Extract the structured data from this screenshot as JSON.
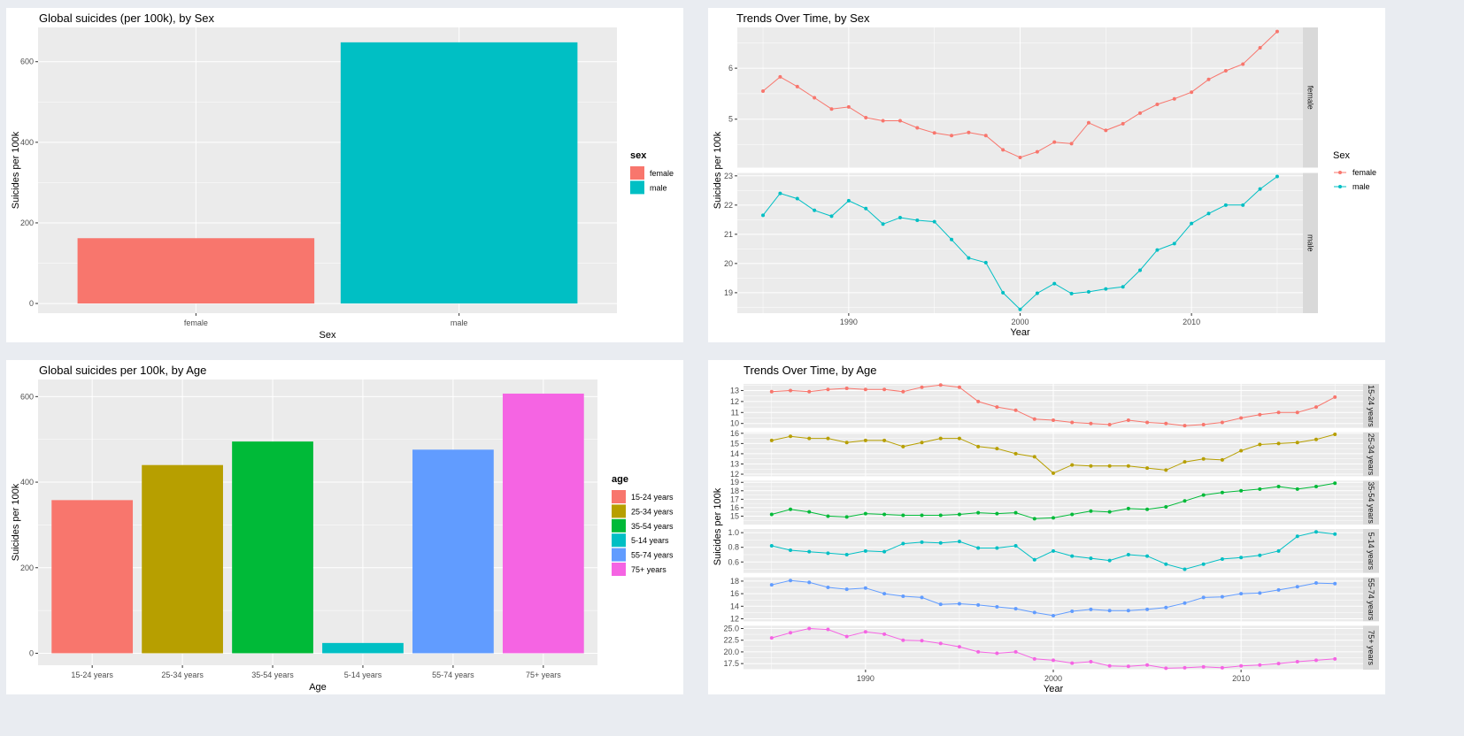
{
  "panels": [
    {
      "title": "Global suicides (per 100k), by Sex"
    },
    {
      "title": "Trends Over Time, by Sex"
    },
    {
      "title": "Global suicides per 100k, by Age"
    },
    {
      "title": "Trends Over Time, by Age"
    }
  ],
  "colors": {
    "female": "#F8766D",
    "male": "#00BFC4",
    "age": [
      "#F8766D",
      "#B79F00",
      "#00BA38",
      "#00BFC4",
      "#619CFF",
      "#F564E3"
    ],
    "panel_bg": "#EBEBEB",
    "strip_bg": "#D9D9D9"
  },
  "chart_data": [
    {
      "type": "bar",
      "title": "Global suicides (per 100k), by Sex",
      "xlabel": "Sex",
      "ylabel": "Suicides per 100k",
      "categories": [
        "female",
        "male"
      ],
      "values": [
        162,
        648
      ],
      "ylim": [
        -24,
        685
      ],
      "yticks": [
        0,
        200,
        400,
        600
      ],
      "legend": {
        "title": "sex",
        "entries": [
          "female",
          "male"
        ],
        "position": "right"
      },
      "grid": true
    },
    {
      "type": "line",
      "title": "Trends Over Time, by Sex",
      "xlabel": "Year",
      "ylabel": "Suicides per 100k",
      "x": [
        1985,
        1986,
        1987,
        1988,
        1989,
        1990,
        1991,
        1992,
        1993,
        1994,
        1995,
        1996,
        1997,
        1998,
        1999,
        2000,
        2001,
        2002,
        2003,
        2004,
        2005,
        2006,
        2007,
        2008,
        2009,
        2010,
        2011,
        2012,
        2013,
        2014,
        2015
      ],
      "xlim": [
        1983.5,
        2016.5
      ],
      "xticks": [
        1990,
        2000,
        2010
      ],
      "series": [
        {
          "name": "female",
          "facet": "female",
          "ylim": [
            4.05,
            6.8
          ],
          "yticks": [
            5,
            6
          ],
          "values": [
            5.55,
            5.83,
            5.64,
            5.42,
            5.2,
            5.24,
            5.03,
            4.97,
            4.97,
            4.83,
            4.73,
            4.68,
            4.74,
            4.68,
            4.4,
            4.25,
            4.36,
            4.55,
            4.52,
            4.93,
            4.78,
            4.91,
            5.12,
            5.29,
            5.4,
            5.53,
            5.78,
            5.95,
            6.08,
            6.4,
            6.72
          ]
        },
        {
          "name": "male",
          "facet": "male",
          "ylim": [
            18.3,
            23.1
          ],
          "yticks": [
            19,
            20,
            21,
            22,
            23
          ],
          "values": [
            21.65,
            22.4,
            22.22,
            21.82,
            21.62,
            22.15,
            21.88,
            21.35,
            21.57,
            21.48,
            21.43,
            20.82,
            20.19,
            20.03,
            19.0,
            18.43,
            18.98,
            19.31,
            18.97,
            19.03,
            19.13,
            19.2,
            19.77,
            20.46,
            20.68,
            21.37,
            21.71,
            22.0,
            22.0,
            22.55,
            22.98
          ]
        }
      ],
      "legend": {
        "title": "Sex",
        "entries": [
          "female",
          "male"
        ],
        "position": "right"
      },
      "grid": true
    },
    {
      "type": "bar",
      "title": "Global suicides per 100k, by Age",
      "xlabel": "Age",
      "ylabel": "Suicides per 100k",
      "categories": [
        "15-24 years",
        "25-34 years",
        "35-54 years",
        "5-14 years",
        "55-74 years",
        "75+ years"
      ],
      "values": [
        358,
        440,
        495,
        24,
        476,
        607
      ],
      "ylim": [
        -28,
        640
      ],
      "yticks": [
        0,
        200,
        400,
        600
      ],
      "legend": {
        "title": "age",
        "entries": [
          "15-24 years",
          "25-34 years",
          "35-54 years",
          "5-14 years",
          "55-74 years",
          "75+ years"
        ],
        "position": "right"
      },
      "grid": true
    },
    {
      "type": "line",
      "title": "Trends Over Time, by Age",
      "xlabel": "Year",
      "ylabel": "Suicides per 100k",
      "x": [
        1985,
        1986,
        1987,
        1988,
        1989,
        1990,
        1991,
        1992,
        1993,
        1994,
        1995,
        1996,
        1997,
        1998,
        1999,
        2000,
        2001,
        2002,
        2003,
        2004,
        2005,
        2006,
        2007,
        2008,
        2009,
        2010,
        2011,
        2012,
        2013,
        2014,
        2015
      ],
      "xlim": [
        1983.5,
        2016.5
      ],
      "xticks": [
        1990,
        2000,
        2010
      ],
      "series": [
        {
          "name": "15-24 years",
          "facet": "15-24 years",
          "ylim": [
            9.6,
            13.6
          ],
          "yticks": [
            10,
            11,
            12,
            13
          ],
          "values": [
            12.9,
            13.0,
            12.9,
            13.1,
            13.2,
            13.1,
            13.1,
            12.9,
            13.3,
            13.5,
            13.3,
            12.0,
            11.5,
            11.2,
            10.4,
            10.3,
            10.1,
            10.0,
            9.9,
            10.3,
            10.1,
            10.0,
            9.8,
            9.9,
            10.1,
            10.5,
            10.8,
            11.0,
            11.0,
            11.5,
            12.4
          ]
        },
        {
          "name": "25-34 years",
          "facet": "25-34 years",
          "ylim": [
            11.8,
            16.1
          ],
          "yticks": [
            12,
            13,
            14,
            15,
            16
          ],
          "values": [
            15.3,
            15.7,
            15.5,
            15.5,
            15.1,
            15.3,
            15.3,
            14.7,
            15.1,
            15.5,
            15.5,
            14.7,
            14.5,
            14.0,
            13.7,
            12.1,
            12.9,
            12.8,
            12.8,
            12.8,
            12.6,
            12.4,
            13.2,
            13.5,
            13.4,
            14.3,
            14.9,
            15.0,
            15.1,
            15.4,
            15.9
          ]
        },
        {
          "name": "35-54 years",
          "facet": "35-54 years",
          "ylim": [
            14.0,
            19.2
          ],
          "yticks": [
            15,
            16,
            17,
            18,
            19
          ],
          "values": [
            15.2,
            15.8,
            15.5,
            15.0,
            14.9,
            15.3,
            15.2,
            15.1,
            15.1,
            15.1,
            15.2,
            15.4,
            15.3,
            15.4,
            14.7,
            14.8,
            15.2,
            15.6,
            15.5,
            15.9,
            15.8,
            16.1,
            16.8,
            17.5,
            17.8,
            18.0,
            18.2,
            18.5,
            18.2,
            18.5,
            18.9
          ]
        },
        {
          "name": "5-14 years",
          "facet": "5-14 years",
          "ylim": [
            0.45,
            1.05
          ],
          "yticks": [
            0.6,
            0.8,
            1.0
          ],
          "values": [
            0.82,
            0.76,
            0.74,
            0.72,
            0.7,
            0.75,
            0.74,
            0.85,
            0.87,
            0.86,
            0.88,
            0.79,
            0.79,
            0.82,
            0.63,
            0.75,
            0.68,
            0.65,
            0.62,
            0.7,
            0.68,
            0.57,
            0.5,
            0.57,
            0.64,
            0.66,
            0.69,
            0.75,
            0.95,
            1.01,
            0.98
          ]
        },
        {
          "name": "55-74 years",
          "facet": "55-74 years",
          "ylim": [
            11.6,
            18.6
          ],
          "yticks": [
            12,
            14,
            16,
            18
          ],
          "values": [
            17.4,
            18.1,
            17.8,
            17.0,
            16.7,
            16.9,
            16.0,
            15.6,
            15.4,
            14.3,
            14.4,
            14.2,
            13.9,
            13.6,
            13.0,
            12.5,
            13.2,
            13.5,
            13.3,
            13.3,
            13.5,
            13.8,
            14.5,
            15.4,
            15.5,
            16.0,
            16.1,
            16.6,
            17.1,
            17.7,
            17.6
          ]
        },
        {
          "name": "75+ years",
          "facet": "75+ years",
          "ylim": [
            16.2,
            25.6
          ],
          "yticks": [
            17.5,
            20.0,
            22.5,
            25.0
          ],
          "values": [
            23.0,
            24.1,
            25.0,
            24.8,
            23.3,
            24.3,
            23.8,
            22.5,
            22.4,
            21.8,
            21.1,
            20.0,
            19.7,
            20.0,
            18.5,
            18.2,
            17.6,
            17.9,
            17.0,
            16.9,
            17.2,
            16.5,
            16.6,
            16.8,
            16.6,
            17.0,
            17.2,
            17.5,
            17.9,
            18.2,
            18.5
          ]
        }
      ],
      "grid": true
    }
  ]
}
